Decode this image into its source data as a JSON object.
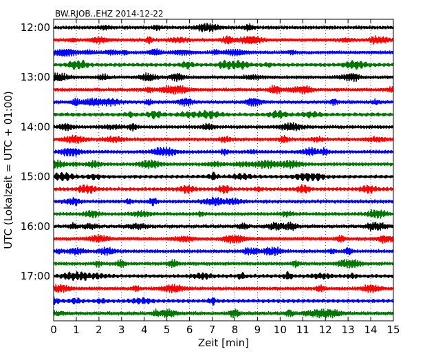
{
  "chart_data": {
    "type": "line",
    "title": "BW.RJOB..EHZ 2014-12-22",
    "xlabel": "Zeit  [min]",
    "ylabel": "UTC (Lokalzeit = UTC + 01:00)",
    "xlim": [
      0,
      15
    ],
    "x_ticks": [
      "0",
      "1",
      "2",
      "3",
      "4",
      "5",
      "6",
      "7",
      "8",
      "9",
      "10",
      "11",
      "12",
      "13",
      "14",
      "15"
    ],
    "y_ticks": [
      "12:00",
      "13:00",
      "14:00",
      "15:00",
      "16:00",
      "17:00"
    ],
    "grid": "vertical dotted at each minute",
    "trace_colors": [
      "#000000",
      "#ff0000",
      "#0000ff",
      "#007700"
    ],
    "traces_per_hour": 4,
    "minutes_per_trace": 15,
    "series": [
      {
        "start": "12:00"
      },
      {
        "start": "12:15"
      },
      {
        "start": "12:30"
      },
      {
        "start": "12:45"
      },
      {
        "start": "13:00"
      },
      {
        "start": "13:15"
      },
      {
        "start": "13:30"
      },
      {
        "start": "13:45"
      },
      {
        "start": "14:00"
      },
      {
        "start": "14:15"
      },
      {
        "start": "14:30"
      },
      {
        "start": "14:45"
      },
      {
        "start": "15:00"
      },
      {
        "start": "15:15"
      },
      {
        "start": "15:30"
      },
      {
        "start": "15:45"
      },
      {
        "start": "16:00"
      },
      {
        "start": "16:15"
      },
      {
        "start": "16:30"
      },
      {
        "start": "16:45"
      },
      {
        "start": "17:00"
      },
      {
        "start": "17:15"
      },
      {
        "start": "17:30"
      },
      {
        "start": "17:45"
      }
    ]
  }
}
